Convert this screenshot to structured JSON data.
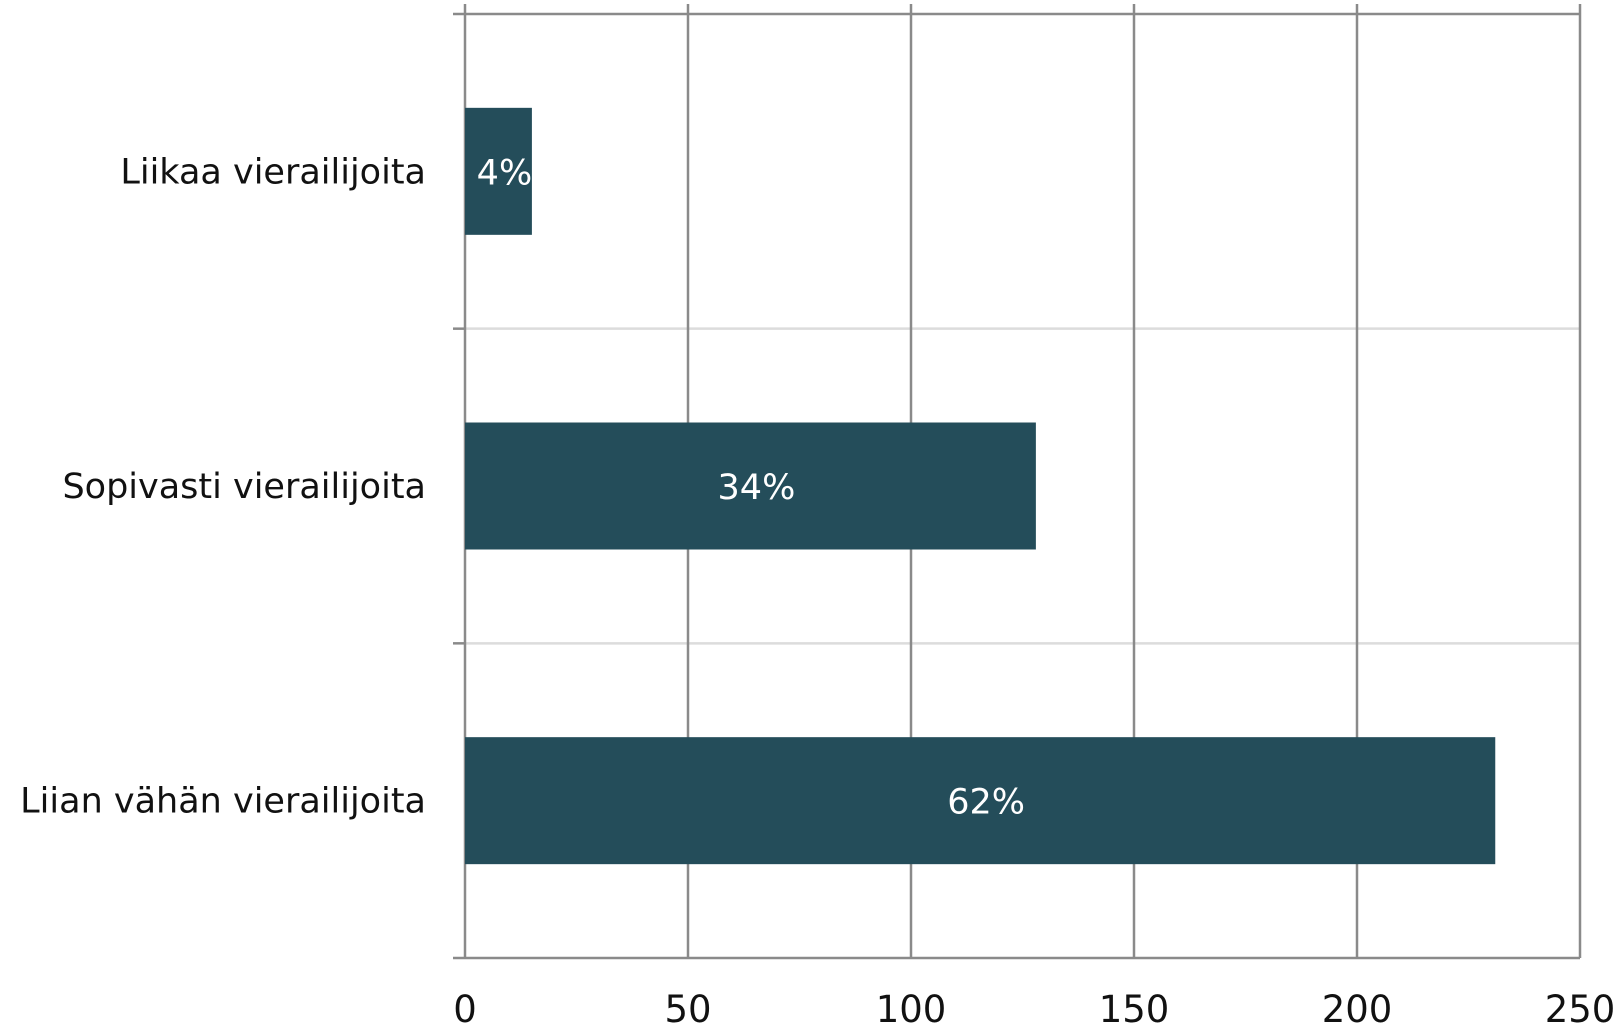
{
  "chart_data": {
    "type": "bar",
    "orientation": "horizontal",
    "categories": [
      "Liikaa vierailijoita",
      "Sopivasti vierailijoita",
      "Liian vähän vierailijoita"
    ],
    "values": [
      15,
      128,
      231
    ],
    "data_labels": [
      "4%",
      "34%",
      "62%"
    ],
    "title": "",
    "xlabel": "",
    "ylabel": "",
    "xlim": [
      0,
      250
    ],
    "x_ticks": [
      0,
      50,
      100,
      150,
      200,
      250
    ],
    "x_tick_labels": [
      "0",
      "50",
      "100",
      "150",
      "200",
      "250"
    ],
    "grid": {
      "vertical": true,
      "horizontal": true
    },
    "legend": "none",
    "colors": {
      "bar": "#244d5a",
      "vertical_grid": "#8a8a8a",
      "horizontal_grid": "#dcdcdc",
      "text": "#111111",
      "data_label": "#ffffff"
    }
  }
}
